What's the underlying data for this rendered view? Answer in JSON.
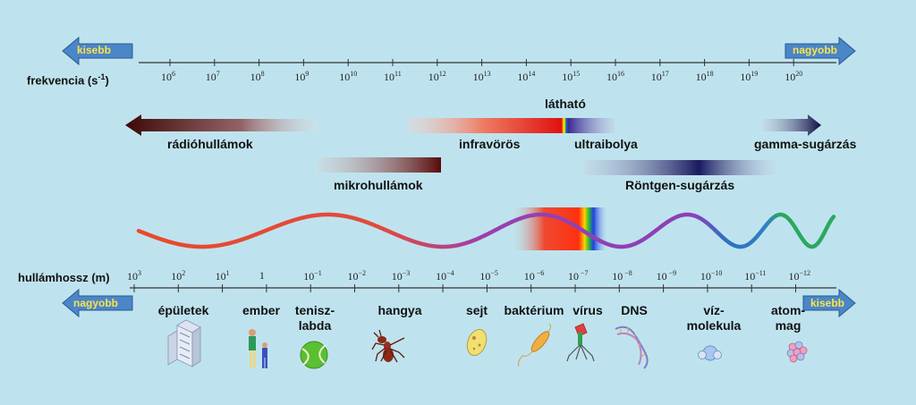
{
  "top_axis": {
    "label": "frekvencia (s",
    "label_sup": "-1",
    "label_end": ")",
    "left_arrow": "kisebb",
    "right_arrow": "nagyobb",
    "ticks": [
      {
        "base": "10",
        "exp": "6"
      },
      {
        "base": "10",
        "exp": "7"
      },
      {
        "base": "10",
        "exp": "8"
      },
      {
        "base": "10",
        "exp": "9"
      },
      {
        "base": "10",
        "exp": "10"
      },
      {
        "base": "10",
        "exp": "11"
      },
      {
        "base": "10",
        "exp": "12"
      },
      {
        "base": "10",
        "exp": "13"
      },
      {
        "base": "10",
        "exp": "14"
      },
      {
        "base": "10",
        "exp": "15"
      },
      {
        "base": "10",
        "exp": "16"
      },
      {
        "base": "10",
        "exp": "17"
      },
      {
        "base": "10",
        "exp": "18"
      },
      {
        "base": "10",
        "exp": "19"
      },
      {
        "base": "10",
        "exp": "20"
      }
    ]
  },
  "bands": {
    "radio": "rádióhullámok",
    "micro": "mikrohullámok",
    "infrared": "infravörös",
    "visible": "látható",
    "uv": "ultraibolya",
    "xray": "Röntgen-sugárzás",
    "gamma": "gamma-sugárzás"
  },
  "bottom_axis": {
    "label": "hullámhossz (m)",
    "left_arrow": "nagyobb",
    "right_arrow": "kisebb",
    "ticks": [
      {
        "base": "10",
        "exp": "3"
      },
      {
        "base": "10",
        "exp": "2"
      },
      {
        "base": "10",
        "exp": "1"
      },
      {
        "base": "1",
        "exp": ""
      },
      {
        "base": "10",
        "exp": "−1"
      },
      {
        "base": "10",
        "exp": "−2"
      },
      {
        "base": "10",
        "exp": "−3"
      },
      {
        "base": "10",
        "exp": "−4"
      },
      {
        "base": "10",
        "exp": "−5"
      },
      {
        "base": "10",
        "exp": " −6"
      },
      {
        "base": "10",
        "exp": " −7"
      },
      {
        "base": "10",
        "exp": " −8"
      },
      {
        "base": "10",
        "exp": " −9"
      },
      {
        "base": "10",
        "exp": "−10"
      },
      {
        "base": "10",
        "exp": "−11"
      },
      {
        "base": "10",
        "exp": "−12"
      }
    ]
  },
  "objects": [
    {
      "label": "épületek",
      "icon": "building-icon"
    },
    {
      "label": "ember",
      "icon": "people-icon"
    },
    {
      "label": "tenisz-\nlabda",
      "icon": "tennis-ball-icon"
    },
    {
      "label": "hangya",
      "icon": "ant-icon"
    },
    {
      "label": "sejt",
      "icon": "cell-icon"
    },
    {
      "label": "baktérium",
      "icon": "bacterium-icon"
    },
    {
      "label": "vírus",
      "icon": "virus-icon"
    },
    {
      "label": "DNS",
      "icon": "dna-icon"
    },
    {
      "label": "víz-\nmolekula",
      "icon": "water-molecule-icon"
    },
    {
      "label": "atom-\nmag",
      "icon": "atomic-nucleus-icon"
    }
  ],
  "colors": {
    "background": "#bfe3ee",
    "arrow_blue": "#4a86c8",
    "arrow_text": "#ffe34a",
    "radio": "#4a0d0d",
    "wave_red": "#e84a2a",
    "wave_purple": "#9a3fb0",
    "wave_blue": "#2f6fc0",
    "wave_green": "#2aa860"
  }
}
